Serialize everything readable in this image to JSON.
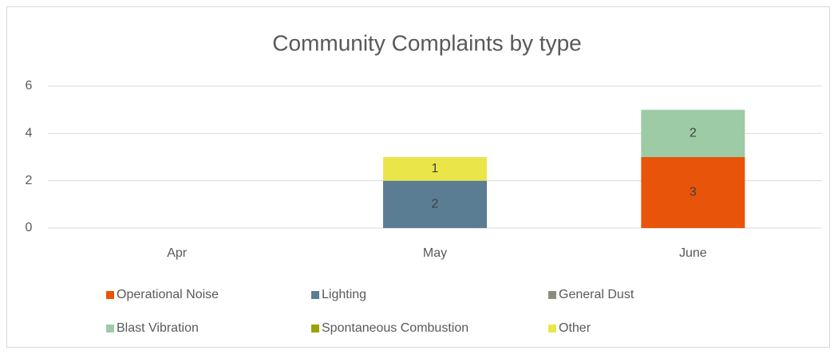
{
  "chart_data": {
    "type": "bar",
    "stacked": true,
    "title": "Community Complaints by type",
    "categories": [
      "Apr",
      "May",
      "June"
    ],
    "series": [
      {
        "name": "Operational Noise",
        "color": "#e8540a",
        "values": [
          null,
          null,
          3
        ]
      },
      {
        "name": "Lighting",
        "color": "#5b7d93",
        "values": [
          null,
          2,
          null
        ]
      },
      {
        "name": "General Dust",
        "color": "#8c8c80",
        "values": [
          null,
          null,
          null
        ]
      },
      {
        "name": "Blast Vibration",
        "color": "#9ccba6",
        "values": [
          null,
          null,
          2
        ]
      },
      {
        "name": "Spontaneous Combustion",
        "color": "#9aa300",
        "values": [
          null,
          null,
          null
        ]
      },
      {
        "name": "Other",
        "color": "#eae64a",
        "values": [
          null,
          1,
          null
        ]
      }
    ],
    "ylim": [
      0,
      6
    ],
    "yticks": [
      0,
      2,
      4,
      6
    ],
    "grid": true,
    "legend": "bottom"
  }
}
